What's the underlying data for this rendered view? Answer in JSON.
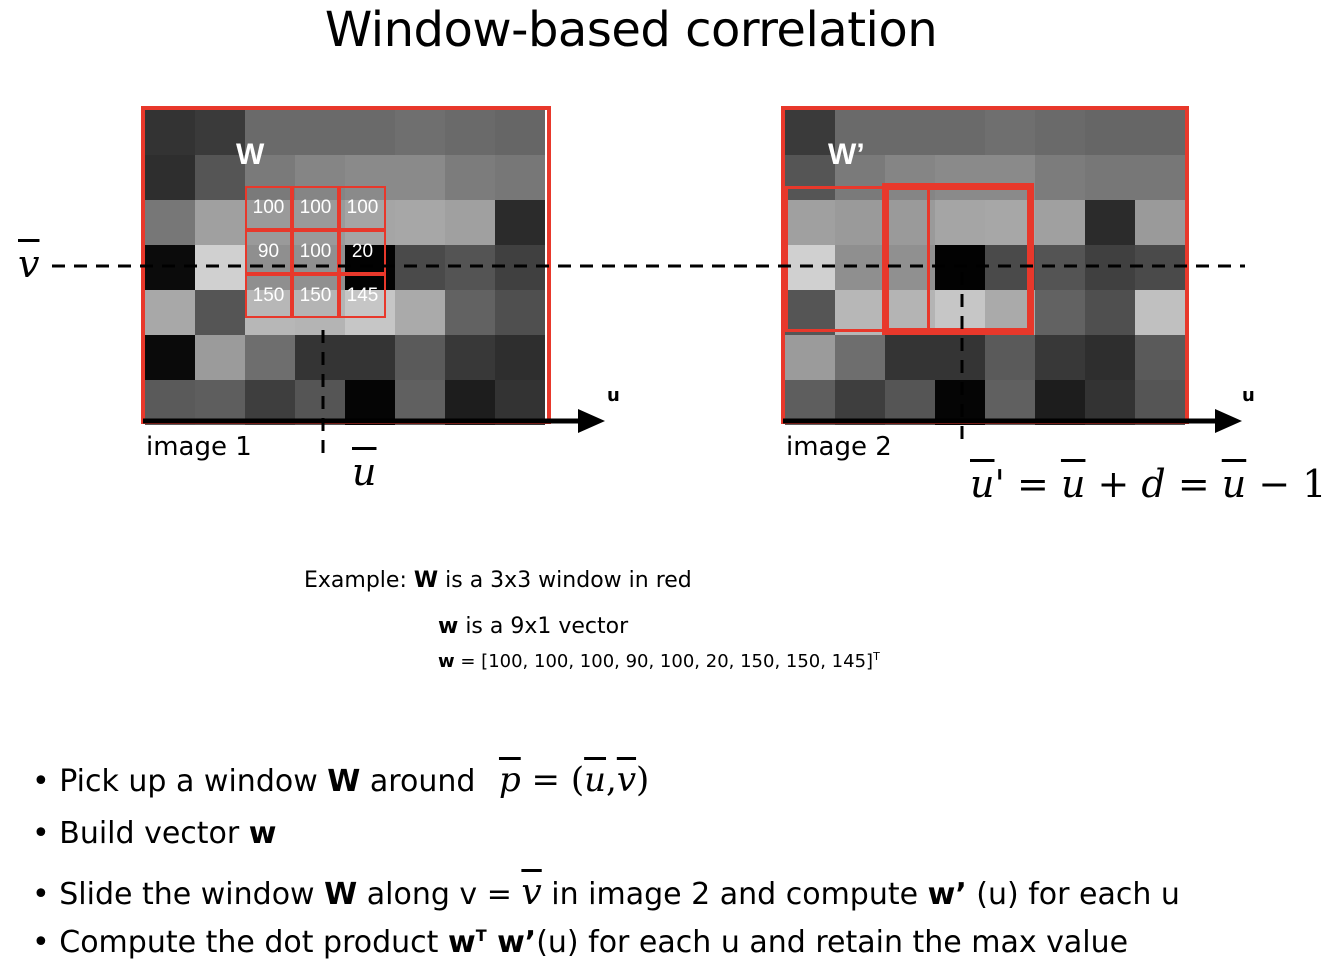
{
  "title": "Window-based correlation",
  "image1": {
    "label": "image 1",
    "window_label": "W",
    "window_values": [
      "100",
      "100",
      "100",
      "90",
      "100",
      "20",
      "150",
      "150",
      "145"
    ],
    "pixels": [
      [
        "#333333",
        "#3a3a3a",
        "#6a6a6a",
        "#6a6a6a",
        "#6a6a6a",
        "#6f6f6f",
        "#6a6a6a",
        "#666666"
      ],
      [
        "#2e2e2e",
        "#555555",
        "#7a7a7a",
        "#858585",
        "#8a8a8a",
        "#8a8a8a",
        "#7c7c7c",
        "#777777"
      ],
      [
        "#777777",
        "#a0a0a0",
        "#9a9a9a",
        "#9a9a9a",
        "#a5a5a5",
        "#a7a7a7",
        "#a0a0a0",
        "#2b2b2b"
      ],
      [
        "#0b0b0b",
        "#d0d0d0",
        "#8f8f8f",
        "#909090",
        "#020202",
        "#4a4a4a",
        "#545454",
        "#404040"
      ],
      [
        "#a8a8a8",
        "#555555",
        "#b7b7b7",
        "#b4b4b4",
        "#c6c6c6",
        "#aaaaaa",
        "#626262",
        "#4f4f4f"
      ],
      [
        "#0a0a0a",
        "#9b9b9b",
        "#6e6e6e",
        "#343434",
        "#343434",
        "#5a5a5a",
        "#383838",
        "#2e2e2e"
      ],
      [
        "#5a5a5a",
        "#5e5e5e",
        "#3e3e3e",
        "#555555",
        "#050505",
        "#606060",
        "#1d1d1d",
        "#333333"
      ]
    ]
  },
  "image2": {
    "label": "image 2",
    "window_label": "W’",
    "pixels": [
      [
        "#3a3a3a",
        "#6a6a6a",
        "#6a6a6a",
        "#6a6a6a",
        "#6f6f6f",
        "#6a6a6a",
        "#666666",
        "#666666"
      ],
      [
        "#555555",
        "#7a7a7a",
        "#858585",
        "#8a8a8a",
        "#8a8a8a",
        "#7c7c7c",
        "#777777",
        "#777777"
      ],
      [
        "#a0a0a0",
        "#9a9a9a",
        "#9a9a9a",
        "#a5a5a5",
        "#a7a7a7",
        "#a0a0a0",
        "#2b2b2b",
        "#9a9a9a"
      ],
      [
        "#d0d0d0",
        "#8f8f8f",
        "#909090",
        "#020202",
        "#4a4a4a",
        "#545454",
        "#404040",
        "#4a4a4a"
      ],
      [
        "#555555",
        "#b7b7b7",
        "#b4b4b4",
        "#c6c6c6",
        "#aaaaaa",
        "#626262",
        "#4f4f4f",
        "#c0c0c0"
      ],
      [
        "#9b9b9b",
        "#6e6e6e",
        "#343434",
        "#343434",
        "#5a5a5a",
        "#383838",
        "#2e2e2e",
        "#5a5a5a"
      ],
      [
        "#5e5e5e",
        "#3e3e3e",
        "#555555",
        "#050505",
        "#606060",
        "#1d1d1d",
        "#333333",
        "#555555"
      ]
    ]
  },
  "axis_u": "u",
  "math": {
    "v_bar": "v",
    "u_bar": "u",
    "shift": {
      "a": "u",
      "prime": "'",
      "eq1": " = ",
      "b": "u",
      "plus": " + d = ",
      "c": "u",
      "minus": " − 1"
    }
  },
  "example": {
    "line1_prefix": "Example: ",
    "line1_bold": "W",
    "line1_suffix": " is a 3x3 window in red",
    "line2_bold": "w",
    "line2_suffix": " is a 9x1 vector",
    "line3_bold": "w",
    "line3_suffix": " = [100, 100, 100, 90, 100, 20, 150, 150, 145]",
    "line3_sup": "T"
  },
  "bullets": {
    "b1_pre": "Pick up a window ",
    "b1_bold": "W",
    "b1_post": " around",
    "b1_math_p": "p",
    "b1_math_eq": " = (",
    "b1_math_u": "u",
    "b1_math_comma": ",",
    "b1_math_v": "v",
    "b1_math_close": ")",
    "b2_pre": "Build vector ",
    "b2_bold": "w",
    "b3_pre": "Slide the window ",
    "b3_bold": "W",
    "b3_mid": " along v = ",
    "b3_math_v": "v",
    "b3_mid2": " in image 2 and compute ",
    "b3_bold2": "w’",
    "b3_post": " (u) for each u",
    "b4_pre": "Compute the dot product ",
    "b4_bold": "w",
    "b4_sup": "T",
    "b4_bold2": " w’",
    "b4_post": "(u) for each u and retain the max value",
    "marker": "•"
  }
}
